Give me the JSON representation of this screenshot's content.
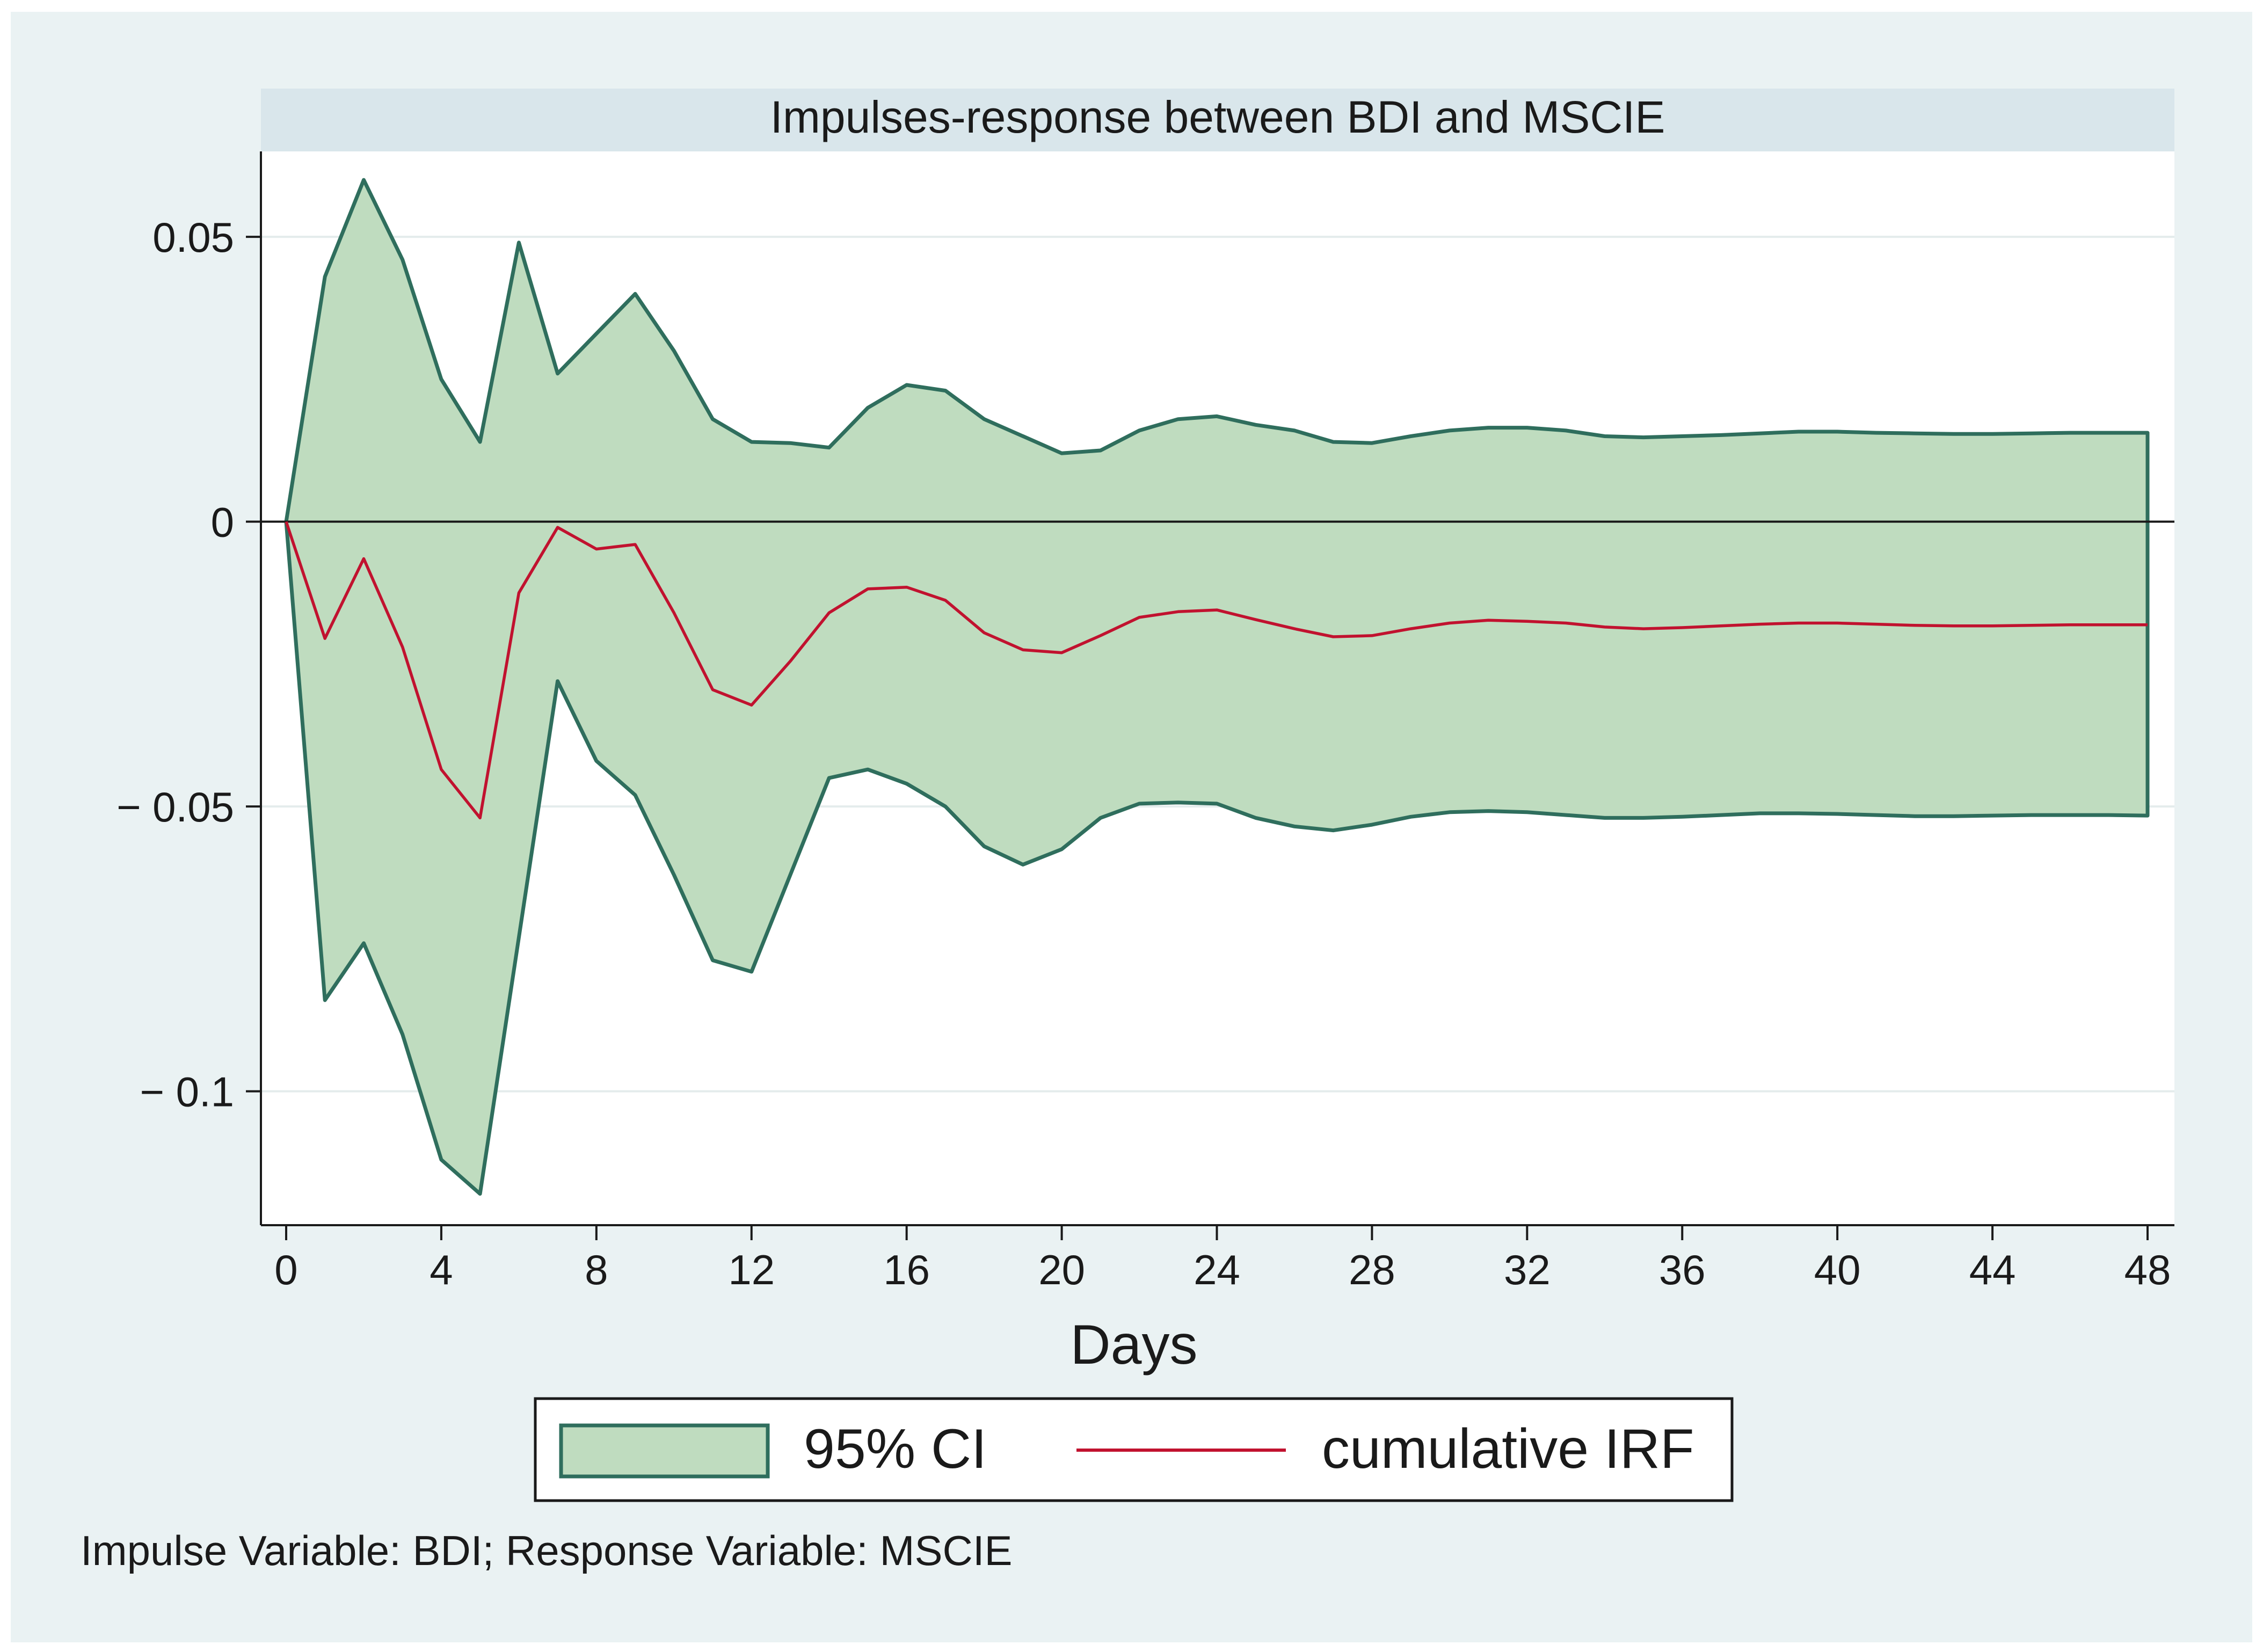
{
  "chart_data": {
    "type": "area",
    "title": "Impulses-response between BDI and MSCIE",
    "xlabel": "Days",
    "ylabel": "",
    "xlim": [
      0,
      48
    ],
    "ylim": [
      -0.1235,
      0.065
    ],
    "x_ticks": [
      0,
      4,
      8,
      12,
      16,
      20,
      24,
      28,
      32,
      36,
      40,
      44,
      48
    ],
    "x_tick_labels": [
      "0",
      "4",
      "8",
      "12",
      "16",
      "20",
      "24",
      "28",
      "32",
      "36",
      "40",
      "44",
      "48"
    ],
    "y_ticks": [
      0.05,
      0,
      -0.05,
      -0.1
    ],
    "y_tick_labels": [
      "0.05",
      "0",
      "− 0.05",
      "− 0.1"
    ],
    "grid": true,
    "zero_line": true,
    "legend_placement": "bottom",
    "note": "Impulse Variable: BDI; Response Variable: MSCIE",
    "x": [
      0,
      1,
      2,
      3,
      4,
      5,
      6,
      7,
      8,
      9,
      10,
      11,
      12,
      13,
      14,
      15,
      16,
      17,
      18,
      19,
      20,
      21,
      22,
      23,
      24,
      25,
      26,
      27,
      28,
      29,
      30,
      31,
      32,
      33,
      34,
      35,
      36,
      37,
      38,
      39,
      40,
      41,
      42,
      43,
      44,
      45,
      46,
      47,
      48
    ],
    "series": [
      {
        "name": "95% CI",
        "kind": "band",
        "color": "#2f6e5d",
        "fill": "#bfdcbf",
        "upper": [
          0,
          0.043,
          0.06,
          0.046,
          0.025,
          0.014,
          0.049,
          0.026,
          0.033,
          0.04,
          0.03,
          0.018,
          0.014,
          0.0138,
          0.013,
          0.02,
          0.024,
          0.023,
          0.018,
          0.015,
          0.012,
          0.0125,
          0.016,
          0.018,
          0.0185,
          0.017,
          0.016,
          0.014,
          0.0138,
          0.015,
          0.016,
          0.0165,
          0.0165,
          0.016,
          0.015,
          0.0148,
          0.015,
          0.0152,
          0.0155,
          0.0158,
          0.0158,
          0.0156,
          0.0155,
          0.0154,
          0.0154,
          0.0155,
          0.0156,
          0.0156,
          0.0156
        ],
        "lower": [
          0,
          -0.084,
          -0.074,
          -0.09,
          -0.112,
          -0.118,
          -0.073,
          -0.028,
          -0.042,
          -0.048,
          -0.062,
          -0.077,
          -0.079,
          -0.062,
          -0.045,
          -0.0435,
          -0.046,
          -0.05,
          -0.057,
          -0.0602,
          -0.0575,
          -0.052,
          -0.0495,
          -0.0493,
          -0.0495,
          -0.052,
          -0.0535,
          -0.0542,
          -0.0532,
          -0.0518,
          -0.051,
          -0.0508,
          -0.051,
          -0.0515,
          -0.052,
          -0.052,
          -0.0518,
          -0.0515,
          -0.0512,
          -0.0512,
          -0.0513,
          -0.0515,
          -0.0517,
          -0.0517,
          -0.0516,
          -0.0515,
          -0.0515,
          -0.0515,
          -0.0516
        ]
      },
      {
        "name": "cumulative IRF",
        "kind": "line",
        "color": "#c1122f",
        "values": [
          0,
          -0.0205,
          -0.0065,
          -0.022,
          -0.0435,
          -0.052,
          -0.0125,
          -0.001,
          -0.0048,
          -0.004,
          -0.016,
          -0.0295,
          -0.0322,
          -0.0245,
          -0.016,
          -0.0118,
          -0.0115,
          -0.0138,
          -0.0195,
          -0.0225,
          -0.023,
          -0.02,
          -0.0168,
          -0.0158,
          -0.0155,
          -0.0172,
          -0.0188,
          -0.0202,
          -0.02,
          -0.0188,
          -0.0178,
          -0.0173,
          -0.0175,
          -0.0178,
          -0.0185,
          -0.0188,
          -0.0186,
          -0.0183,
          -0.018,
          -0.0178,
          -0.0178,
          -0.018,
          -0.0182,
          -0.0183,
          -0.0183,
          -0.0182,
          -0.0181,
          -0.0181,
          -0.0181
        ]
      }
    ],
    "colors": {
      "outer_background": "#eaf2f3",
      "title_band": "#d9e6eb",
      "plot_background": "#ffffff",
      "gridline": "#e4ecec",
      "axis": "#1a1a1a"
    }
  }
}
